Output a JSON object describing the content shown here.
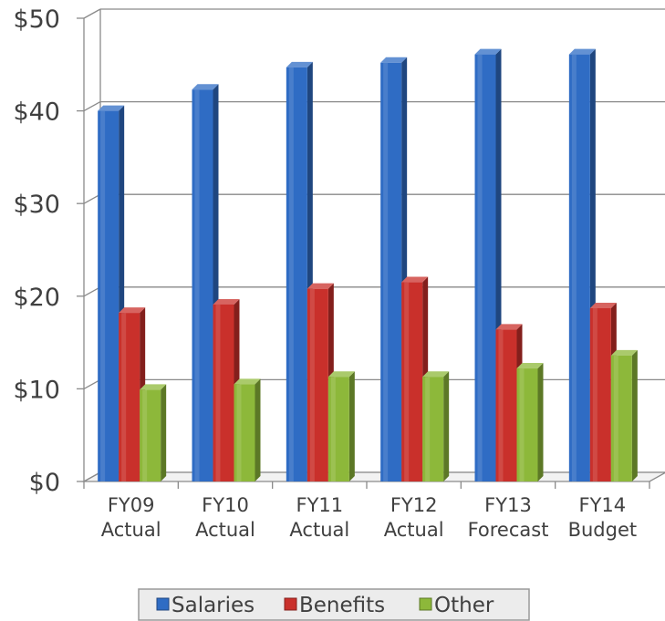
{
  "chart_data": {
    "type": "bar",
    "title": "",
    "xlabel": "",
    "ylabel": "",
    "ylim": [
      0,
      50
    ],
    "yticks": [
      0,
      10,
      20,
      30,
      40,
      50
    ],
    "ytick_labels": [
      "$0",
      "$10",
      "$20",
      "$30",
      "$40",
      "$50"
    ],
    "categories": [
      [
        "FY09",
        "Actual"
      ],
      [
        "FY10",
        "Actual"
      ],
      [
        "FY11",
        "Actual"
      ],
      [
        "FY12",
        "Actual"
      ],
      [
        "FY13",
        "Forecast"
      ],
      [
        "FY14",
        "Budget"
      ]
    ],
    "series": [
      {
        "name": "Salaries",
        "color": "#2F6CC4",
        "values": [
          40,
          42.3,
          44.7,
          45.2,
          46.1,
          46.1
        ]
      },
      {
        "name": "Benefits",
        "color": "#C9302B",
        "values": [
          18.2,
          19.1,
          20.8,
          21.5,
          16.4,
          18.7
        ]
      },
      {
        "name": "Other",
        "color": "#8DB83A",
        "values": [
          9.9,
          10.5,
          11.3,
          11.3,
          12.2,
          13.6
        ]
      }
    ],
    "grid": true,
    "legend_position": "bottom"
  }
}
